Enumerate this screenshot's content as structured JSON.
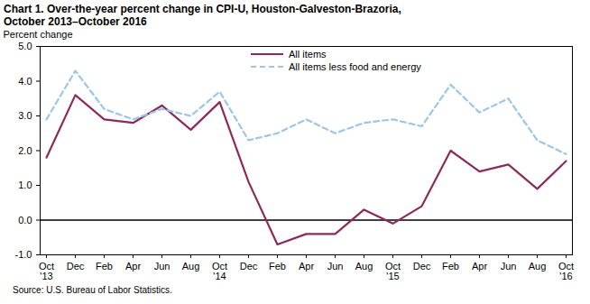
{
  "chart_data": {
    "type": "line",
    "title": "Chart 1. Over-the-year percent change in CPI-U, Houston-Galveston-Brazoria, October 2013–October 2016",
    "y_label": "Percent change",
    "source": "Source: U.S. Bureau of Labor Statistics.",
    "categories": [
      "Oct '13",
      "Dec",
      "Feb",
      "Apr",
      "Jun",
      "Aug",
      "Oct '14",
      "Dec",
      "Feb",
      "Apr",
      "Jun",
      "Aug",
      "Oct '15",
      "Dec",
      "Feb",
      "Apr",
      "Jun",
      "Aug",
      "Oct '16"
    ],
    "series": [
      {
        "name": "All items",
        "color": "#8b2a5b",
        "line_style": "solid",
        "values": [
          1.8,
          3.6,
          2.9,
          2.8,
          3.3,
          2.6,
          3.4,
          1.1,
          -0.7,
          -0.4,
          -0.4,
          0.3,
          -0.1,
          0.4,
          2.0,
          1.4,
          1.6,
          0.9,
          1.7
        ]
      },
      {
        "name": "All items less food and energy",
        "color": "#9cc6e8",
        "line_style": "dashed",
        "values": [
          2.9,
          4.3,
          3.2,
          2.9,
          3.2,
          3.0,
          3.7,
          2.3,
          2.5,
          2.9,
          2.5,
          2.8,
          2.9,
          2.7,
          3.9,
          3.1,
          3.5,
          2.3,
          1.9
        ]
      }
    ],
    "ylim": [
      -1,
      5
    ],
    "yticks": [
      {
        "value": -1,
        "label": "-1.0"
      },
      {
        "value": 0,
        "label": "0.0"
      },
      {
        "value": 1,
        "label": "1.0"
      },
      {
        "value": 2,
        "label": "2.0"
      },
      {
        "value": 3,
        "label": "3.0"
      },
      {
        "value": 4,
        "label": "4.0"
      },
      {
        "value": 5,
        "label": "5.0"
      }
    ],
    "grid": false,
    "legend": "top"
  }
}
